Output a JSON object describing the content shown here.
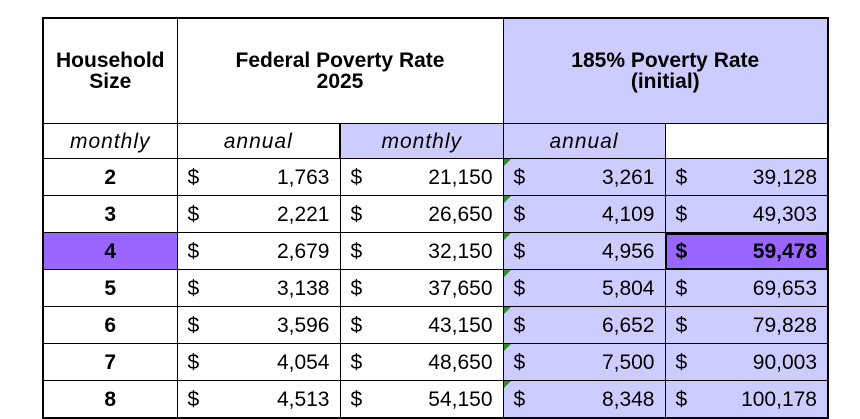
{
  "table": {
    "header": {
      "household_size": "Household Size",
      "federal_title_line1": "Federal Poverty Rate",
      "federal_title_line2": "2025",
      "p185_title_line1": "185% Poverty Rate",
      "p185_title_line2": "(initial)",
      "monthly": "monthly",
      "annual": "annual"
    },
    "currency_symbol": "$",
    "rows": [
      {
        "size": "2",
        "fed_monthly": "1,763",
        "fed_annual": "21,150",
        "p185_monthly": "3,261",
        "p185_annual": "39,128"
      },
      {
        "size": "3",
        "fed_monthly": "2,221",
        "fed_annual": "26,650",
        "p185_monthly": "4,109",
        "p185_annual": "49,303"
      },
      {
        "size": "4",
        "fed_monthly": "2,679",
        "fed_annual": "32,150",
        "p185_monthly": "4,956",
        "p185_annual": "59,478"
      },
      {
        "size": "5",
        "fed_monthly": "3,138",
        "fed_annual": "37,650",
        "p185_monthly": "5,804",
        "p185_annual": "69,653"
      },
      {
        "size": "6",
        "fed_monthly": "3,596",
        "fed_annual": "43,150",
        "p185_monthly": "6,652",
        "p185_annual": "79,828"
      },
      {
        "size": "7",
        "fed_monthly": "4,054",
        "fed_annual": "48,650",
        "p185_monthly": "7,500",
        "p185_annual": "90,003"
      },
      {
        "size": "8",
        "fed_monthly": "4,513",
        "fed_annual": "54,150",
        "p185_monthly": "8,348",
        "p185_annual": "100,178"
      }
    ],
    "highlighted_row_size": "4",
    "colors": {
      "p185_fill": "#ccccff",
      "highlight_fill": "#9966ff",
      "marker": "#2e8b2e"
    }
  }
}
